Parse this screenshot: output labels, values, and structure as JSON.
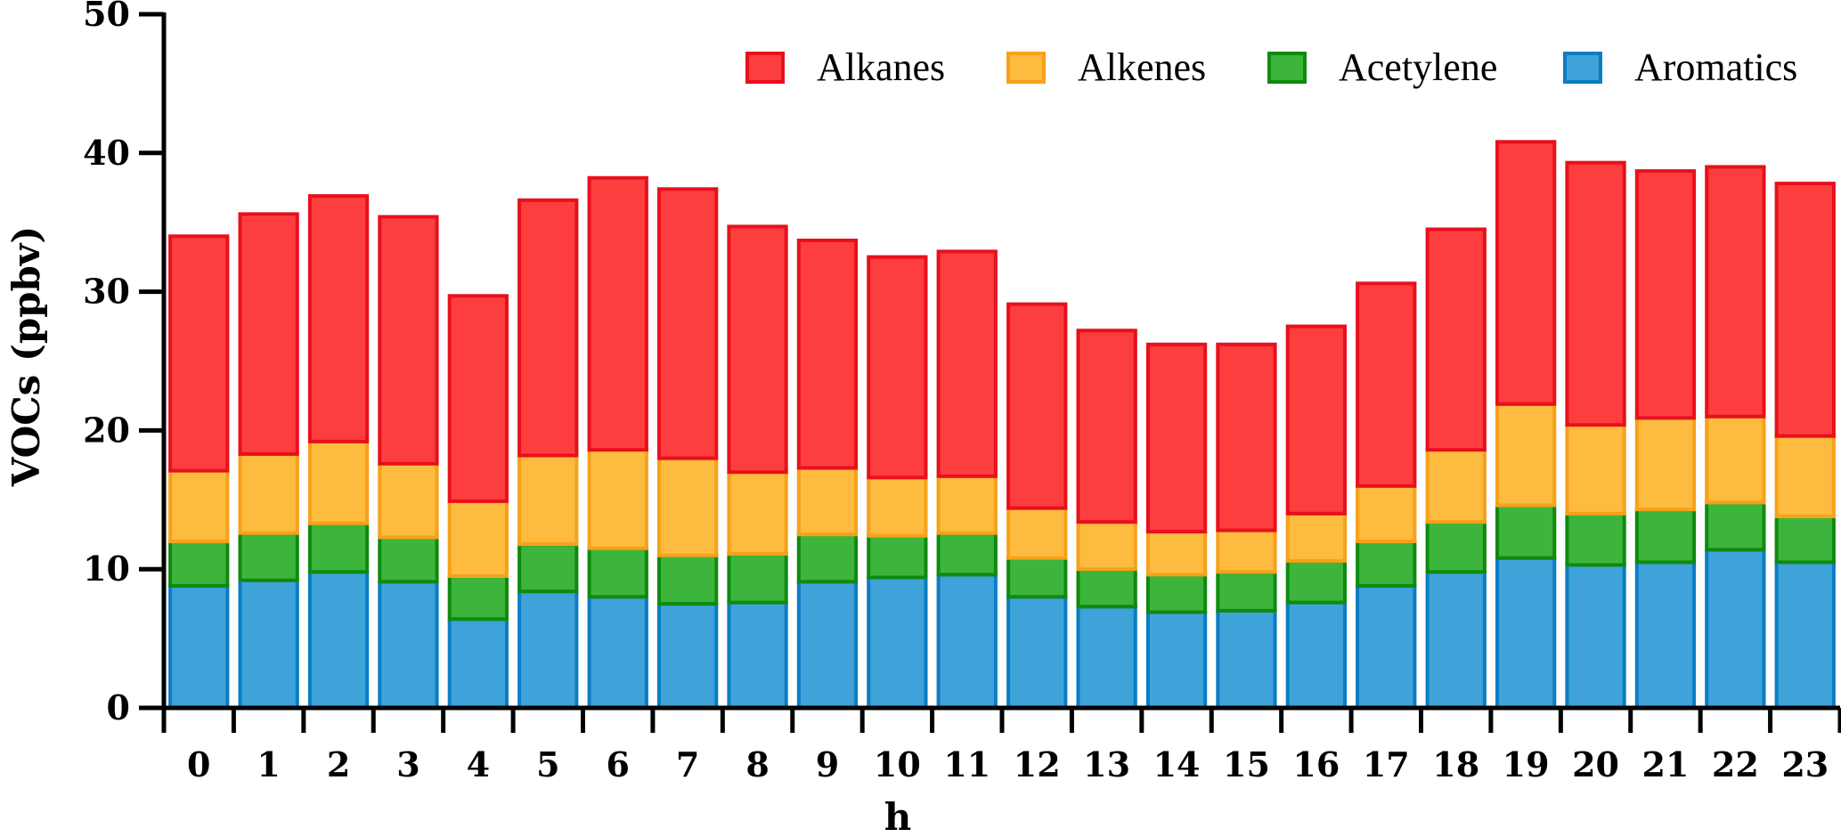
{
  "chart_data": {
    "type": "bar",
    "stacked": true,
    "xlabel": "h",
    "ylabel": "VOCs (ppbv)",
    "ylim": [
      0,
      50
    ],
    "yticks": [
      0,
      10,
      20,
      30,
      40,
      50
    ],
    "categories": [
      "0",
      "1",
      "2",
      "3",
      "4",
      "5",
      "6",
      "7",
      "8",
      "9",
      "10",
      "11",
      "12",
      "13",
      "14",
      "15",
      "16",
      "17",
      "18",
      "19",
      "20",
      "21",
      "22",
      "23"
    ],
    "legend_position": "top-right",
    "series": [
      {
        "name": "Aromatics",
        "fill": "#3fa3d9",
        "stroke": "#0a7dc4",
        "values": [
          8.8,
          9.2,
          9.8,
          9.1,
          6.4,
          8.4,
          8.0,
          7.5,
          7.6,
          9.1,
          9.4,
          9.6,
          8.0,
          7.3,
          6.9,
          7.0,
          7.6,
          8.8,
          9.8,
          10.8,
          10.3,
          10.5,
          11.4,
          10.5
        ]
      },
      {
        "name": "Acetylene",
        "fill": "#3db53d",
        "stroke": "#0f8a0f",
        "values": [
          3.2,
          3.4,
          3.5,
          3.2,
          3.1,
          3.4,
          3.5,
          3.5,
          3.5,
          3.4,
          3.0,
          3.0,
          2.8,
          2.7,
          2.7,
          2.8,
          3.0,
          3.2,
          3.6,
          3.8,
          3.7,
          3.8,
          3.4,
          3.3
        ]
      },
      {
        "name": "Alkenes",
        "fill": "#fdbc3f",
        "stroke": "#f7a11a",
        "values": [
          5.1,
          5.7,
          5.9,
          5.3,
          5.4,
          6.4,
          7.1,
          7.0,
          5.9,
          4.8,
          4.2,
          4.1,
          3.6,
          3.4,
          3.1,
          3.0,
          3.4,
          4.0,
          5.2,
          7.3,
          6.4,
          6.6,
          6.2,
          5.8
        ]
      },
      {
        "name": "Alkanes",
        "fill": "#fd3e3e",
        "stroke": "#e8101d",
        "values": [
          16.9,
          17.3,
          17.7,
          17.8,
          14.8,
          18.4,
          19.6,
          19.4,
          17.7,
          16.4,
          15.9,
          16.2,
          14.7,
          13.8,
          13.5,
          13.4,
          13.5,
          14.6,
          15.9,
          18.9,
          18.9,
          17.8,
          18.0,
          18.2
        ]
      }
    ],
    "legend_order": [
      "Alkanes",
      "Alkenes",
      "Acetylene",
      "Aromatics"
    ]
  }
}
